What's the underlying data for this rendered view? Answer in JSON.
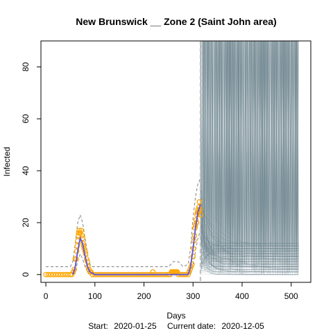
{
  "chart_data": {
    "type": "line",
    "title": "New Brunswick __ Zone 2 (Saint John area)",
    "xlabel": "Days",
    "ylabel": "Infected",
    "footer": {
      "start_label": "Start:",
      "start_date": "2020-01-25",
      "current_label": "Current date:",
      "current_date": "2020-12-05"
    },
    "xlim": [
      -10,
      540
    ],
    "ylim": [
      -3,
      90
    ],
    "x_ticks": [
      0,
      100,
      200,
      300,
      400,
      500
    ],
    "y_ticks": [
      0,
      20,
      40,
      60,
      80
    ],
    "current_day": 315,
    "grid": false,
    "colors": {
      "observed": "#FFA500",
      "fit": "#6A5ACD",
      "band": "#808080",
      "projection": "#708890",
      "current_line": "#BEBEBE"
    },
    "observed": [
      [
        0,
        0
      ],
      [
        5,
        0
      ],
      [
        10,
        0
      ],
      [
        15,
        0
      ],
      [
        20,
        0
      ],
      [
        25,
        0
      ],
      [
        30,
        0
      ],
      [
        35,
        0
      ],
      [
        40,
        0
      ],
      [
        45,
        0
      ],
      [
        50,
        0
      ],
      [
        53,
        0
      ],
      [
        56,
        1
      ],
      [
        58,
        2
      ],
      [
        60,
        6
      ],
      [
        62,
        6
      ],
      [
        63,
        9
      ],
      [
        64,
        11
      ],
      [
        65,
        13
      ],
      [
        66,
        15
      ],
      [
        67,
        16
      ],
      [
        68,
        17
      ],
      [
        70,
        16
      ],
      [
        72,
        17
      ],
      [
        74,
        15
      ],
      [
        75,
        14
      ],
      [
        76,
        12
      ],
      [
        77,
        11
      ],
      [
        78,
        10
      ],
      [
        80,
        9
      ],
      [
        81,
        8
      ],
      [
        83,
        6
      ],
      [
        85,
        5
      ],
      [
        86,
        3
      ],
      [
        88,
        2
      ],
      [
        90,
        1
      ],
      [
        92,
        1
      ],
      [
        95,
        0
      ],
      [
        100,
        0
      ],
      [
        105,
        0
      ],
      [
        110,
        0
      ],
      [
        115,
        0
      ],
      [
        120,
        0
      ],
      [
        125,
        0
      ],
      [
        130,
        0
      ],
      [
        135,
        0
      ],
      [
        140,
        0
      ],
      [
        145,
        0
      ],
      [
        150,
        0
      ],
      [
        155,
        0
      ],
      [
        160,
        0
      ],
      [
        165,
        0
      ],
      [
        170,
        0
      ],
      [
        175,
        0
      ],
      [
        180,
        0
      ],
      [
        185,
        0
      ],
      [
        190,
        0
      ],
      [
        195,
        0
      ],
      [
        200,
        0
      ],
      [
        205,
        0
      ],
      [
        210,
        0
      ],
      [
        215,
        0
      ],
      [
        218,
        1
      ],
      [
        220,
        0
      ],
      [
        225,
        0
      ],
      [
        230,
        0
      ],
      [
        235,
        0
      ],
      [
        240,
        0
      ],
      [
        245,
        0
      ],
      [
        250,
        0
      ],
      [
        253,
        0
      ],
      [
        256,
        1
      ],
      [
        258,
        1
      ],
      [
        260,
        1
      ],
      [
        262,
        1
      ],
      [
        264,
        1
      ],
      [
        266,
        1
      ],
      [
        268,
        1
      ],
      [
        270,
        0
      ],
      [
        275,
        0
      ],
      [
        280,
        0
      ],
      [
        285,
        0
      ],
      [
        290,
        0
      ],
      [
        292,
        1
      ],
      [
        294,
        2
      ],
      [
        296,
        3
      ],
      [
        298,
        4
      ],
      [
        300,
        7
      ],
      [
        301,
        10
      ],
      [
        302,
        13
      ],
      [
        303,
        15
      ],
      [
        304,
        18
      ],
      [
        305,
        19
      ],
      [
        306,
        21
      ],
      [
        307,
        20
      ],
      [
        308,
        23
      ],
      [
        309,
        24
      ],
      [
        310,
        25
      ],
      [
        311,
        24
      ],
      [
        312,
        26
      ],
      [
        313,
        28
      ],
      [
        314,
        25
      ],
      [
        315,
        23
      ]
    ],
    "fit_line": [
      [
        55,
        0
      ],
      [
        60,
        3
      ],
      [
        65,
        9
      ],
      [
        70,
        14
      ],
      [
        75,
        12
      ],
      [
        80,
        7
      ],
      [
        85,
        3
      ],
      [
        90,
        1
      ],
      [
        100,
        0
      ],
      [
        200,
        0
      ],
      [
        290,
        0
      ],
      [
        295,
        3
      ],
      [
        300,
        10
      ],
      [
        305,
        18
      ],
      [
        310,
        24
      ],
      [
        315,
        27
      ]
    ],
    "band_upper": [
      [
        0,
        3
      ],
      [
        50,
        3
      ],
      [
        55,
        5
      ],
      [
        60,
        12
      ],
      [
        65,
        20
      ],
      [
        70,
        23
      ],
      [
        75,
        20
      ],
      [
        80,
        14
      ],
      [
        85,
        8
      ],
      [
        90,
        4
      ],
      [
        95,
        3
      ],
      [
        250,
        3
      ],
      [
        260,
        5
      ],
      [
        270,
        5
      ],
      [
        280,
        3
      ],
      [
        290,
        4
      ],
      [
        295,
        10
      ],
      [
        300,
        22
      ],
      [
        305,
        30
      ],
      [
        310,
        35
      ],
      [
        315,
        37
      ]
    ],
    "band_lower": [
      [
        55,
        0
      ],
      [
        60,
        1
      ],
      [
        65,
        5
      ],
      [
        70,
        8
      ],
      [
        75,
        6
      ],
      [
        80,
        3
      ],
      [
        85,
        1
      ],
      [
        90,
        0
      ],
      [
        290,
        0
      ],
      [
        295,
        1
      ],
      [
        300,
        4
      ],
      [
        305,
        9
      ],
      [
        310,
        14
      ],
      [
        315,
        17
      ]
    ],
    "projection": {
      "start_day": 315,
      "end_day": 515,
      "start_min": 0,
      "start_max": 36,
      "floor_levels": [
        0,
        1,
        2,
        3,
        4,
        5,
        6,
        7,
        8,
        9,
        10,
        11,
        12
      ]
    }
  }
}
